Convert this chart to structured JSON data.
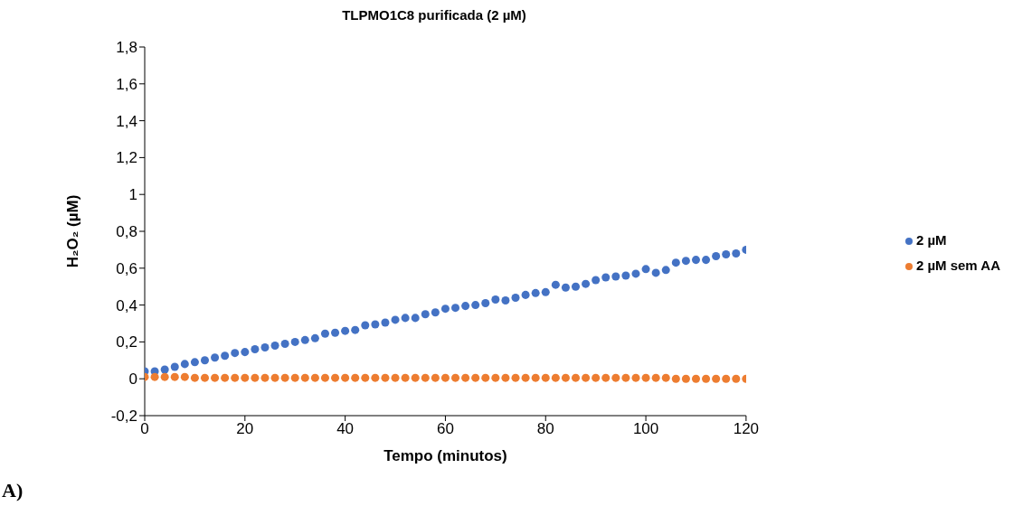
{
  "chart_data": {
    "type": "scatter",
    "title": "TLPMO1C8 purificada (2 µM)",
    "xlabel": "Tempo (minutos)",
    "ylabel": "H₂O₂ (µM)",
    "x": [
      0,
      2,
      4,
      6,
      8,
      10,
      12,
      14,
      16,
      18,
      20,
      22,
      24,
      26,
      28,
      30,
      32,
      34,
      36,
      38,
      40,
      42,
      44,
      46,
      48,
      50,
      52,
      54,
      56,
      58,
      60,
      62,
      64,
      66,
      68,
      70,
      72,
      74,
      76,
      78,
      80,
      82,
      84,
      86,
      88,
      90,
      92,
      94,
      96,
      98,
      100,
      102,
      104,
      106,
      108,
      110,
      112,
      114,
      116,
      118,
      120
    ],
    "series": [
      {
        "name": "2 µM",
        "color": "#4472c4",
        "values": [
          0.04,
          0.04,
          0.05,
          0.065,
          0.08,
          0.09,
          0.1,
          0.115,
          0.125,
          0.14,
          0.145,
          0.16,
          0.17,
          0.18,
          0.19,
          0.2,
          0.21,
          0.22,
          0.245,
          0.25,
          0.26,
          0.265,
          0.29,
          0.295,
          0.305,
          0.32,
          0.33,
          0.33,
          0.35,
          0.36,
          0.38,
          0.385,
          0.395,
          0.4,
          0.41,
          0.43,
          0.425,
          0.44,
          0.455,
          0.465,
          0.47,
          0.51,
          0.495,
          0.5,
          0.515,
          0.535,
          0.55,
          0.555,
          0.56,
          0.57,
          0.595,
          0.575,
          0.59,
          0.63,
          0.64,
          0.645,
          0.645,
          0.665,
          0.675,
          0.68,
          0.7
        ]
      },
      {
        "name": "2 µM sem AA",
        "color": "#ed7d31",
        "values": [
          0.01,
          0.01,
          0.01,
          0.01,
          0.01,
          0.005,
          0.005,
          0.005,
          0.005,
          0.005,
          0.005,
          0.005,
          0.005,
          0.005,
          0.005,
          0.005,
          0.005,
          0.005,
          0.005,
          0.005,
          0.005,
          0.005,
          0.005,
          0.005,
          0.005,
          0.005,
          0.005,
          0.005,
          0.005,
          0.005,
          0.005,
          0.005,
          0.005,
          0.005,
          0.005,
          0.005,
          0.005,
          0.005,
          0.005,
          0.005,
          0.005,
          0.005,
          0.005,
          0.005,
          0.005,
          0.005,
          0.005,
          0.005,
          0.005,
          0.005,
          0.005,
          0.005,
          0.005,
          0,
          0,
          0,
          0,
          0,
          0,
          0,
          0
        ]
      }
    ],
    "xlim": [
      0,
      120
    ],
    "xticks": [
      0,
      20,
      40,
      60,
      80,
      100,
      120
    ],
    "ylim": [
      -0.2,
      1.8
    ],
    "yticks": [
      {
        "value": -0.2,
        "label": "-0,2"
      },
      0,
      {
        "value": 0.2,
        "label": "0,2"
      },
      {
        "value": 0.4,
        "label": "0,4"
      },
      {
        "value": 0.6,
        "label": "0,6"
      },
      {
        "value": 0.8,
        "label": "0,8"
      },
      1,
      {
        "value": 1.2,
        "label": "1,2"
      },
      {
        "value": 1.4,
        "label": "1,4"
      },
      {
        "value": 1.6,
        "label": "1,6"
      },
      {
        "value": 1.8,
        "label": "1,8"
      }
    ],
    "marker": "circle",
    "legend": "right",
    "grid": false,
    "annotations": [
      "A)"
    ]
  }
}
